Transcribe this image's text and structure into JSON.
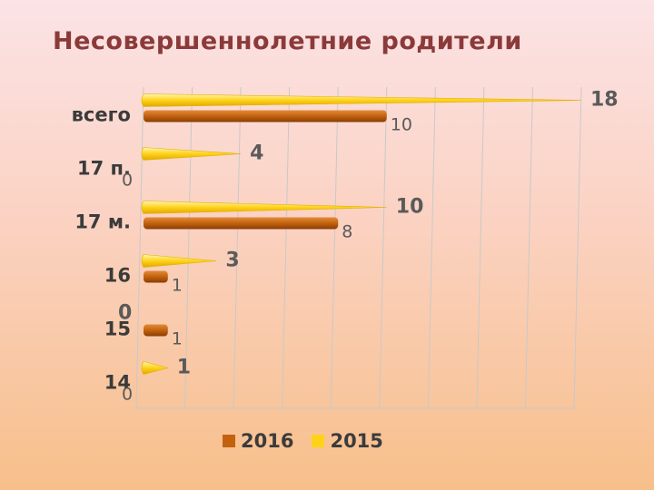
{
  "title": "Несовершеннолетние родители",
  "colors": {
    "series_2016": "#c2620f",
    "series_2015": "#ffd21a"
  },
  "chart_data": {
    "type": "bar",
    "orientation": "horizontal",
    "title": "Несовершеннолетние родители",
    "categories": [
      "всего",
      "17 п.",
      "17 м.",
      "16",
      "15",
      "14"
    ],
    "series": [
      {
        "name": "2016",
        "values": [
          10,
          0,
          8,
          1,
          1,
          0
        ]
      },
      {
        "name": "2015",
        "values": [
          18,
          4,
          10,
          3,
          0,
          1
        ]
      }
    ],
    "xlim": [
      0,
      18
    ],
    "grid": true,
    "legend": "bottom"
  }
}
